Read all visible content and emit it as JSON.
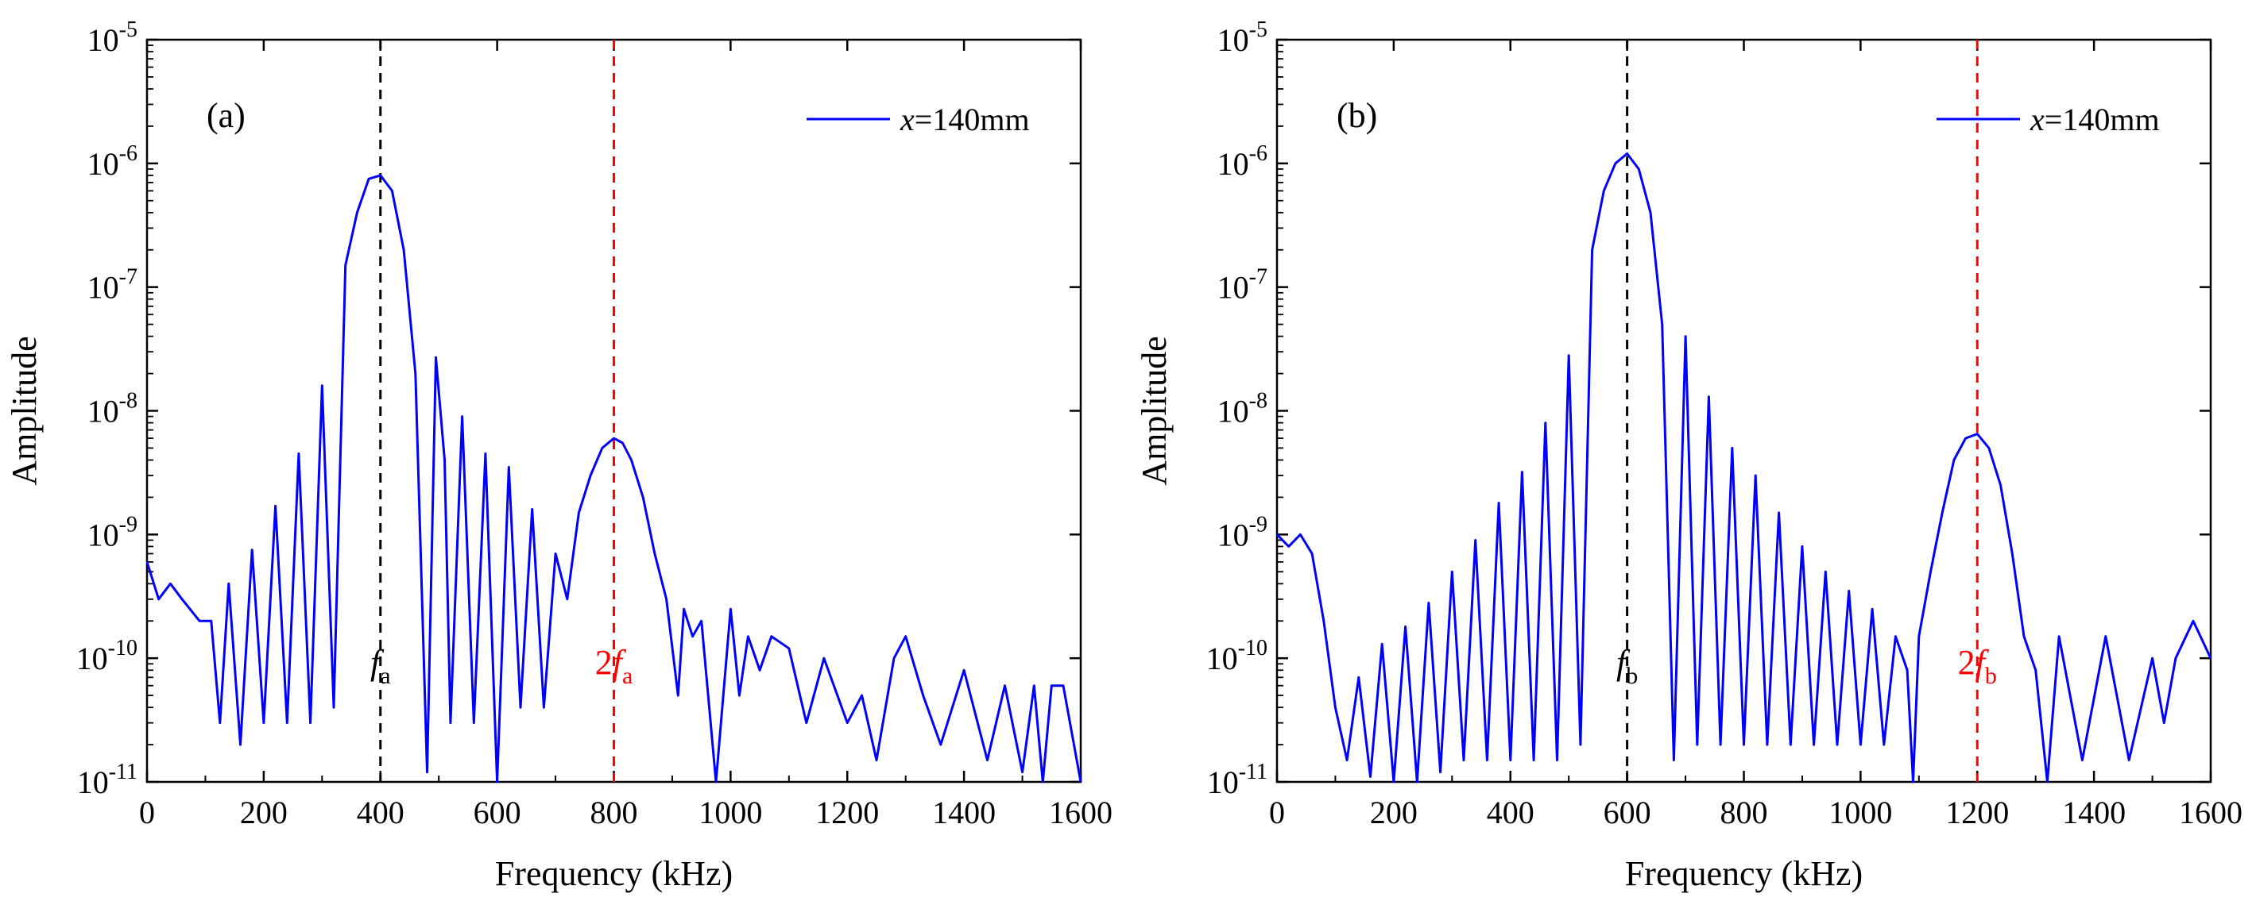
{
  "chart_data": [
    {
      "type": "line",
      "panel_label": "(a)",
      "xlabel": "Frequency (kHz)",
      "ylabel": "Amplitude",
      "yscale": "log",
      "xlim": [
        0,
        1600
      ],
      "ylim_exp": [
        -11,
        -5
      ],
      "x_ticks": [
        0,
        200,
        400,
        600,
        800,
        1000,
        1200,
        1400,
        1600
      ],
      "y_ticks": [
        {
          "base": "10",
          "exp": "-11"
        },
        {
          "base": "10",
          "exp": "-10"
        },
        {
          "base": "10",
          "exp": "-9"
        },
        {
          "base": "10",
          "exp": "-8"
        },
        {
          "base": "10",
          "exp": "-7"
        },
        {
          "base": "10",
          "exp": "-6"
        },
        {
          "base": "10",
          "exp": "-5"
        }
      ],
      "legend": {
        "var": "x",
        "text": "=140mm",
        "color": "#0000ff",
        "placement": "top-right"
      },
      "markers": [
        {
          "x": 400,
          "label": "f",
          "sub": "a",
          "prefix": "",
          "color": "#000000"
        },
        {
          "x": 800,
          "label": "f",
          "sub": "a",
          "prefix": "2",
          "color": "#ff0000"
        }
      ],
      "series": [
        {
          "name": "x=140mm",
          "color": "#0000ff",
          "x": [
            0,
            20,
            40,
            60,
            90,
            110,
            125,
            140,
            160,
            180,
            200,
            220,
            240,
            260,
            280,
            300,
            320,
            340,
            360,
            380,
            400,
            420,
            440,
            460,
            480,
            495,
            510,
            520,
            540,
            560,
            580,
            600,
            620,
            640,
            660,
            680,
            700,
            720,
            740,
            760,
            780,
            800,
            815,
            830,
            850,
            870,
            890,
            910,
            920,
            935,
            950,
            975,
            1000,
            1015,
            1030,
            1050,
            1070,
            1100,
            1130,
            1160,
            1200,
            1225,
            1250,
            1280,
            1300,
            1330,
            1360,
            1400,
            1440,
            1470,
            1500,
            1520,
            1535,
            1550,
            1570,
            1600
          ],
          "y": [
            6e-10,
            3e-10,
            4e-10,
            3e-10,
            2e-10,
            2e-10,
            3e-11,
            4e-10,
            2e-11,
            7.5e-10,
            3e-11,
            1.7e-09,
            3e-11,
            4.5e-09,
            3e-11,
            1.6e-08,
            4e-11,
            1.5e-07,
            4e-07,
            7.5e-07,
            8e-07,
            6e-07,
            2e-07,
            2e-08,
            1.2e-11,
            2.7e-08,
            4e-09,
            3e-11,
            9e-09,
            3e-11,
            4.5e-09,
            1e-11,
            3.5e-09,
            4e-11,
            1.6e-09,
            4e-11,
            7e-10,
            3e-10,
            1.5e-09,
            3e-09,
            5e-09,
            6e-09,
            5.5e-09,
            4e-09,
            2e-09,
            7e-10,
            3e-10,
            5e-11,
            2.5e-10,
            1.5e-10,
            2e-10,
            1e-11,
            2.5e-10,
            5e-11,
            1.5e-10,
            8e-11,
            1.5e-10,
            1.2e-10,
            3e-11,
            1e-10,
            3e-11,
            5e-11,
            1.5e-11,
            1e-10,
            1.5e-10,
            5e-11,
            2e-11,
            8e-11,
            1.5e-11,
            6e-11,
            1.2e-11,
            6e-11,
            1e-11,
            6e-11,
            6e-11,
            1e-11
          ]
        }
      ]
    },
    {
      "type": "line",
      "panel_label": "(b)",
      "xlabel": "Frequency (kHz)",
      "ylabel": "Amplitude",
      "yscale": "log",
      "xlim": [
        0,
        1600
      ],
      "ylim_exp": [
        -11,
        -5
      ],
      "x_ticks": [
        0,
        200,
        400,
        600,
        800,
        1000,
        1200,
        1400,
        1600
      ],
      "y_ticks": [
        {
          "base": "10",
          "exp": "-11"
        },
        {
          "base": "10",
          "exp": "-10"
        },
        {
          "base": "10",
          "exp": "-9"
        },
        {
          "base": "10",
          "exp": "-8"
        },
        {
          "base": "10",
          "exp": "-7"
        },
        {
          "base": "10",
          "exp": "-6"
        },
        {
          "base": "10",
          "exp": "-5"
        }
      ],
      "legend": {
        "var": "x",
        "text": "=140mm",
        "color": "#0000ff",
        "placement": "top-right"
      },
      "markers": [
        {
          "x": 600,
          "label": "f",
          "sub": "b",
          "prefix": "",
          "color": "#000000"
        },
        {
          "x": 1200,
          "label": "f",
          "sub": "b",
          "prefix": "2",
          "color": "#ff0000"
        }
      ],
      "series": [
        {
          "name": "x=140mm",
          "color": "#0000ff",
          "x": [
            0,
            20,
            40,
            60,
            80,
            100,
            120,
            140,
            160,
            180,
            200,
            220,
            240,
            260,
            280,
            300,
            320,
            340,
            360,
            380,
            400,
            420,
            440,
            460,
            480,
            500,
            520,
            540,
            560,
            580,
            600,
            620,
            640,
            660,
            680,
            700,
            720,
            740,
            760,
            780,
            800,
            820,
            840,
            860,
            880,
            900,
            920,
            940,
            960,
            980,
            1000,
            1020,
            1040,
            1060,
            1080,
            1090,
            1100,
            1120,
            1140,
            1160,
            1180,
            1200,
            1220,
            1240,
            1260,
            1280,
            1300,
            1320,
            1340,
            1380,
            1420,
            1460,
            1500,
            1520,
            1540,
            1570,
            1600
          ],
          "y": [
            1e-09,
            8e-10,
            1e-09,
            7e-10,
            2e-10,
            4e-11,
            1.5e-11,
            7e-11,
            1.1e-11,
            1.3e-10,
            1e-11,
            1.8e-10,
            1e-11,
            2.8e-10,
            1.2e-11,
            5e-10,
            1.5e-11,
            9e-10,
            1.5e-11,
            1.8e-09,
            1.5e-11,
            3.2e-09,
            1.5e-11,
            8e-09,
            1.5e-11,
            2.8e-08,
            2e-11,
            2e-07,
            6e-07,
            1e-06,
            1.2e-06,
            9e-07,
            4e-07,
            5e-08,
            1.5e-11,
            4e-08,
            2e-11,
            1.3e-08,
            2e-11,
            5e-09,
            2e-11,
            3e-09,
            2e-11,
            1.5e-09,
            2e-11,
            8e-10,
            2e-11,
            5e-10,
            2e-11,
            3.5e-10,
            2e-11,
            2.5e-10,
            2e-11,
            1.5e-10,
            8e-11,
            1e-11,
            1.5e-10,
            5e-10,
            1.5e-09,
            4e-09,
            6e-09,
            6.5e-09,
            5e-09,
            2.5e-09,
            7e-10,
            1.5e-10,
            8e-11,
            1e-11,
            1.5e-10,
            1.5e-11,
            1.5e-10,
            1.5e-11,
            1e-10,
            3e-11,
            1e-10,
            2e-10,
            1e-10
          ]
        }
      ]
    }
  ]
}
